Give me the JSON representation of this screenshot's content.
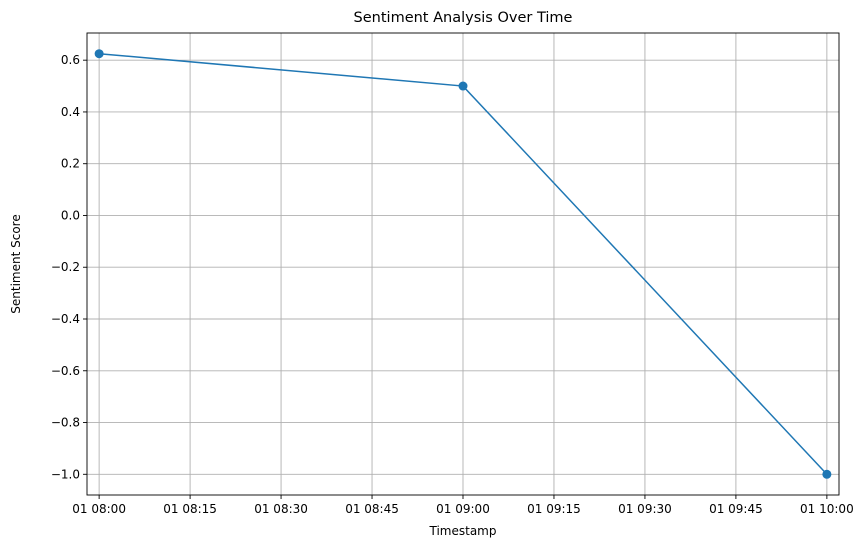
{
  "chart_data": {
    "type": "line",
    "title": "Sentiment Analysis Over Time",
    "xlabel": "Timestamp",
    "ylabel": "Sentiment Score",
    "x_ticks": [
      "01 08:00",
      "01 08:15",
      "01 08:30",
      "01 08:45",
      "01 09:00",
      "01 09:15",
      "01 09:30",
      "01 09:45",
      "01 10:00"
    ],
    "y_ticks": [
      0.6,
      0.4,
      0.2,
      0.0,
      -0.2,
      -0.4,
      -0.6,
      -0.8,
      -1.0
    ],
    "y_tick_labels": [
      "0.6",
      "0.4",
      "0.2",
      "0.0",
      "−0.2",
      "−0.4",
      "−0.6",
      "−0.8",
      "−1.0"
    ],
    "xlim": [
      "01 07:58",
      "01 10:02"
    ],
    "ylim": [
      -1.08,
      0.705
    ],
    "grid": true,
    "series": [
      {
        "color": "#1f77b4",
        "marker": "circle",
        "points": [
          {
            "x": "01 08:00",
            "y": 0.625
          },
          {
            "x": "01 09:00",
            "y": 0.5
          },
          {
            "x": "01 10:00",
            "y": -1.0
          }
        ]
      }
    ]
  }
}
